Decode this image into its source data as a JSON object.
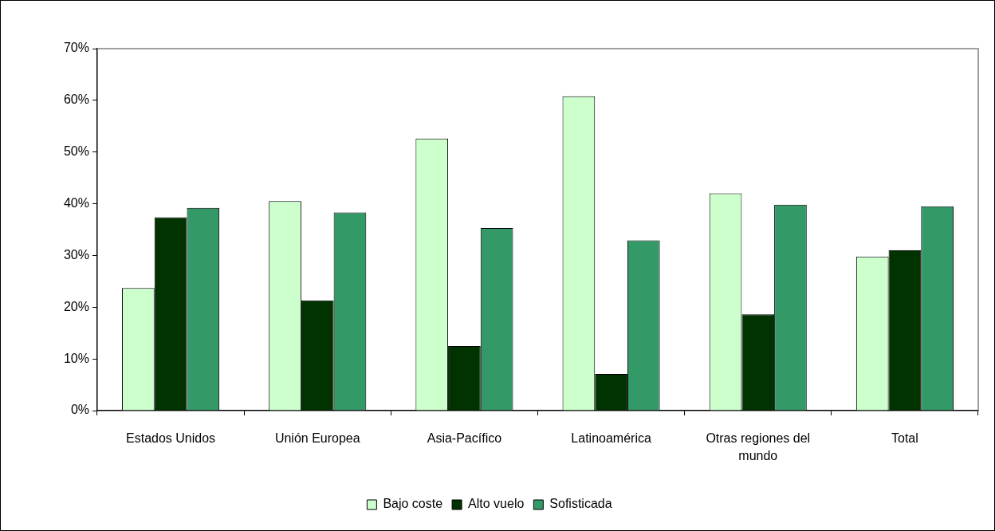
{
  "chart_data": {
    "type": "bar",
    "categories": [
      "Estados Unidos",
      "Unión Europea",
      "Asia-Pacífico",
      "Latinoamérica",
      "Otras regiones del mundo",
      "Total"
    ],
    "series": [
      {
        "name": "Bajo coste",
        "color": "#ccffcc",
        "values": [
          23.7,
          40.5,
          52.6,
          60.8,
          42.0,
          29.8
        ]
      },
      {
        "name": "Alto vuelo",
        "color": "#003300",
        "values": [
          37.4,
          21.3,
          12.5,
          7.1,
          18.6,
          31.0
        ]
      },
      {
        "name": "Sofisticada",
        "color": "#339966",
        "values": [
          39.2,
          38.3,
          35.3,
          32.9,
          39.8,
          39.5
        ]
      }
    ],
    "ylim": [
      0,
      70
    ],
    "yticks": [
      {
        "value": 0,
        "label": "0%"
      },
      {
        "value": 10,
        "label": "10%"
      },
      {
        "value": 20,
        "label": "20%"
      },
      {
        "value": 30,
        "label": "30%"
      },
      {
        "value": 40,
        "label": "40%"
      },
      {
        "value": 50,
        "label": "50%"
      },
      {
        "value": 60,
        "label": "60%"
      },
      {
        "value": 70,
        "label": "70%"
      }
    ],
    "legend": "bottom"
  }
}
